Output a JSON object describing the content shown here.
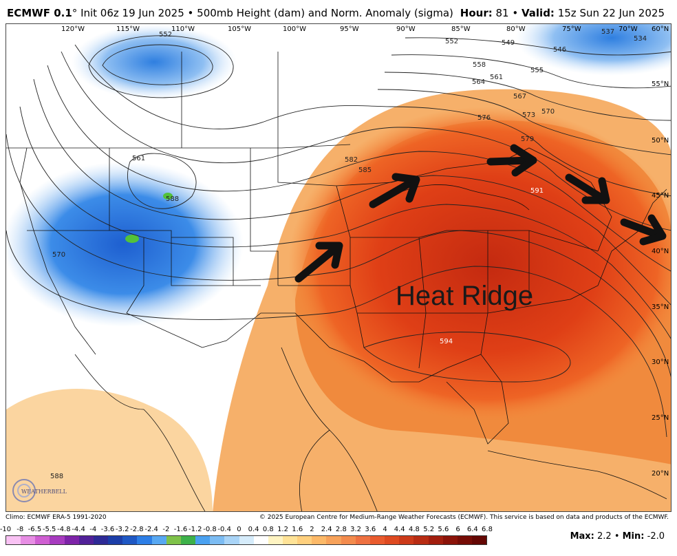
{
  "header": {
    "model": "ECMWF 0.1",
    "init": "Init 06z 19 Jun 2025",
    "product": "500mb Height (dam) and Norm. Anomaly (sigma)",
    "hour_label": "Hour:",
    "hour_value": "81",
    "valid_label": "Valid:",
    "valid_value": "15z Sun 22 Jun 2025"
  },
  "map": {
    "annotation": "Heat Ridge",
    "lon_labels": [
      "120°W",
      "115°W",
      "110°W",
      "105°W",
      "100°W",
      "95°W",
      "90°W",
      "85°W",
      "80°W",
      "75°W",
      "70°W",
      "60°N"
    ],
    "lat_labels": [
      "55°N",
      "50°N",
      "45°N",
      "40°N",
      "35°N",
      "30°N",
      "25°N",
      "20°N"
    ],
    "contour_labels": [
      "552",
      "552",
      "549",
      "546",
      "537",
      "534",
      "555",
      "558",
      "561",
      "564",
      "567",
      "570",
      "573",
      "576",
      "579",
      "582",
      "585",
      "588",
      "591",
      "594",
      "561",
      "570",
      "588"
    ],
    "brand": "WEATHERBELL",
    "colors": {
      "ridge_core": "#cc2a0e",
      "ridge": "#ea4d1a",
      "anom_warm": "#f7a25a",
      "trough": "#2d7ee6",
      "trough_edge": "#a9c9f3",
      "arrow": "#111111"
    }
  },
  "footer": {
    "climo": "Climo: ECMWF ERA-5 1991-2020",
    "copyright": "© 2025 European Centre for Medium-Range Weather Forecasts (ECMWF). This service is based on data and products of the ECMWF.",
    "scale_ticks": [
      "-10",
      "-8",
      "-6.5",
      "-5.5",
      "-4.8",
      "-4.4",
      "-4",
      "-3.6",
      "-3.2",
      "-2.8",
      "-2.4",
      "-2",
      "-1.6",
      "-1.2",
      "-0.8",
      "-0.4",
      "0",
      "0.4",
      "0.8",
      "1.2",
      "1.6",
      "2",
      "2.4",
      "2.8",
      "3.2",
      "3.6",
      "4",
      "4.4",
      "4.8",
      "5.2",
      "5.6",
      "6",
      "6.4",
      "6.8"
    ],
    "scale_colors": [
      "#f9c2f4",
      "#e78ee4",
      "#cf5fd2",
      "#a73bbf",
      "#7d23a8",
      "#512198",
      "#2e2a96",
      "#1c3ea8",
      "#1f58c4",
      "#2d7ee6",
      "#58a8f2",
      "#7fc24a",
      "#3db14a",
      "#4aa1f0",
      "#7cbcf3",
      "#a9d4f7",
      "#d6ecfb",
      "#ffffff",
      "#fff4c2",
      "#ffe397",
      "#ffd07e",
      "#fcb968",
      "#f7a25a",
      "#f38b4d",
      "#ee7141",
      "#e95b2e",
      "#de4a21",
      "#cc3a19",
      "#b82c13",
      "#a21e0e",
      "#8b1309",
      "#760c06",
      "#640704"
    ],
    "max_label": "Max:",
    "max_value": "2.2",
    "min_label": "Min:",
    "min_value": "-2.0"
  }
}
